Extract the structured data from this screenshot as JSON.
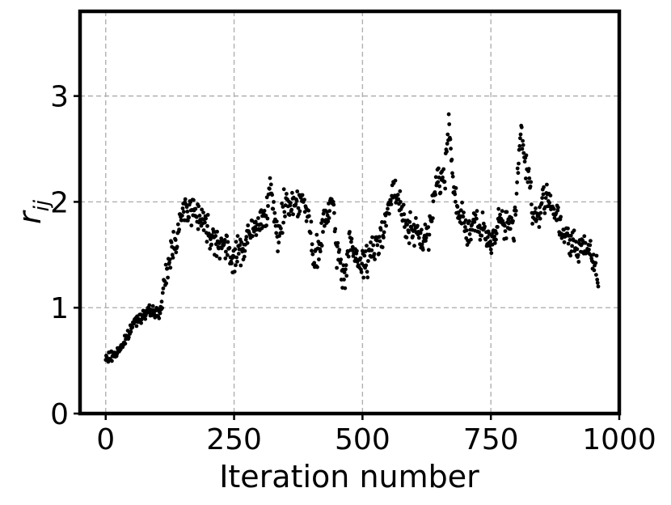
{
  "chart_data": {
    "type": "scatter",
    "xlabel": "Iteration number",
    "ylabel": {
      "main": "r",
      "sub": "ij"
    },
    "xlim": [
      -50,
      1000
    ],
    "ylim": [
      0,
      3.8
    ],
    "xticks": [
      0,
      250,
      500,
      750,
      1000
    ],
    "xtick_labels": [
      "0",
      "250",
      "500",
      "750",
      "1000"
    ],
    "yticks": [
      0,
      1,
      2,
      3
    ],
    "ytick_labels": [
      "0",
      "1",
      "2",
      "3"
    ],
    "grid": true,
    "marker_color": "#000000",
    "n_points": 960,
    "trend_y": [
      [
        0,
        0.51
      ],
      [
        20,
        0.57
      ],
      [
        40,
        0.7
      ],
      [
        55,
        0.86
      ],
      [
        70,
        0.93
      ],
      [
        90,
        0.97
      ],
      [
        105,
        0.94
      ],
      [
        115,
        1.2
      ],
      [
        125,
        1.5
      ],
      [
        140,
        1.72
      ],
      [
        155,
        1.95
      ],
      [
        170,
        1.92
      ],
      [
        185,
        1.88
      ],
      [
        200,
        1.72
      ],
      [
        215,
        1.65
      ],
      [
        230,
        1.58
      ],
      [
        245,
        1.47
      ],
      [
        265,
        1.55
      ],
      [
        280,
        1.7
      ],
      [
        295,
        1.75
      ],
      [
        310,
        1.9
      ],
      [
        320,
        2.1
      ],
      [
        335,
        1.65
      ],
      [
        350,
        2.0
      ],
      [
        365,
        1.98
      ],
      [
        380,
        2.05
      ],
      [
        395,
        1.85
      ],
      [
        405,
        1.4
      ],
      [
        415,
        1.55
      ],
      [
        425,
        1.8
      ],
      [
        440,
        2.0
      ],
      [
        450,
        1.55
      ],
      [
        465,
        1.25
      ],
      [
        475,
        1.7
      ],
      [
        485,
        1.45
      ],
      [
        500,
        1.4
      ],
      [
        515,
        1.5
      ],
      [
        530,
        1.6
      ],
      [
        545,
        1.85
      ],
      [
        560,
        2.1
      ],
      [
        570,
        2.0
      ],
      [
        585,
        1.8
      ],
      [
        600,
        1.7
      ],
      [
        615,
        1.65
      ],
      [
        630,
        1.7
      ],
      [
        645,
        2.25
      ],
      [
        660,
        2.2
      ],
      [
        668,
        2.8
      ],
      [
        680,
        2.0
      ],
      [
        695,
        1.85
      ],
      [
        705,
        1.7
      ],
      [
        720,
        1.8
      ],
      [
        735,
        1.7
      ],
      [
        750,
        1.6
      ],
      [
        765,
        1.85
      ],
      [
        780,
        1.8
      ],
      [
        795,
        1.75
      ],
      [
        808,
        2.7
      ],
      [
        815,
        2.42
      ],
      [
        825,
        2.2
      ],
      [
        835,
        1.8
      ],
      [
        850,
        1.95
      ],
      [
        860,
        2.1
      ],
      [
        875,
        1.9
      ],
      [
        890,
        1.7
      ],
      [
        905,
        1.6
      ],
      [
        920,
        1.55
      ],
      [
        940,
        1.6
      ],
      [
        955,
        1.35
      ]
    ],
    "noise_amplitude": 0.09
  }
}
